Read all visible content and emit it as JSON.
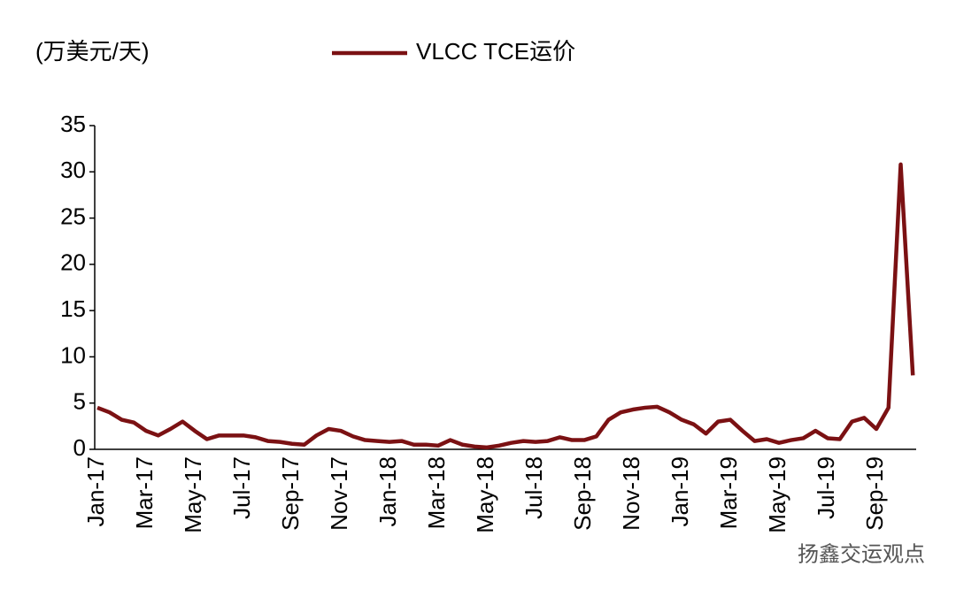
{
  "chart_data": {
    "type": "line",
    "y_label": "(万美元/天)",
    "categories": [
      "Jan-17",
      null,
      null,
      null,
      "Mar-17",
      null,
      null,
      null,
      "May-17",
      null,
      null,
      null,
      "Jul-17",
      null,
      null,
      null,
      "Sep-17",
      null,
      null,
      null,
      "Nov-17",
      null,
      null,
      null,
      "Jan-18",
      null,
      null,
      null,
      "Mar-18",
      null,
      null,
      null,
      "May-18",
      null,
      null,
      null,
      "Jul-18",
      null,
      null,
      null,
      "Sep-18",
      null,
      null,
      null,
      "Nov-18",
      null,
      null,
      null,
      "Jan-19",
      null,
      null,
      null,
      "Mar-19",
      null,
      null,
      null,
      "May-19",
      null,
      null,
      null,
      "Jul-19",
      null,
      null,
      null,
      "Sep-19",
      null,
      null,
      null
    ],
    "series": [
      {
        "name": "VLCC TCE运价",
        "color": "#7b1113",
        "values": [
          4.5,
          4.0,
          3.2,
          2.9,
          2.0,
          1.5,
          2.2,
          3.0,
          2.0,
          1.1,
          1.5,
          1.5,
          1.5,
          1.3,
          0.9,
          0.8,
          0.6,
          0.5,
          1.5,
          2.2,
          2.0,
          1.4,
          1.0,
          0.9,
          0.8,
          0.9,
          0.5,
          0.5,
          0.4,
          1.0,
          0.5,
          0.3,
          0.2,
          0.4,
          0.7,
          0.9,
          0.8,
          0.9,
          1.3,
          1.0,
          1.0,
          1.4,
          3.2,
          4.0,
          4.3,
          4.5,
          4.6,
          4.0,
          3.2,
          2.7,
          1.7,
          3.0,
          3.2,
          2.0,
          0.9,
          1.1,
          0.7,
          1.0,
          1.2,
          2.0,
          1.2,
          1.1,
          3.0,
          3.4,
          2.2,
          4.5,
          30.8,
          8.0
        ]
      }
    ],
    "ylim": [
      0,
      35
    ],
    "yticks": [
      0,
      5,
      10,
      15,
      20,
      25,
      30,
      35
    ],
    "grid": false
  },
  "watermark": "扬鑫交运观点"
}
